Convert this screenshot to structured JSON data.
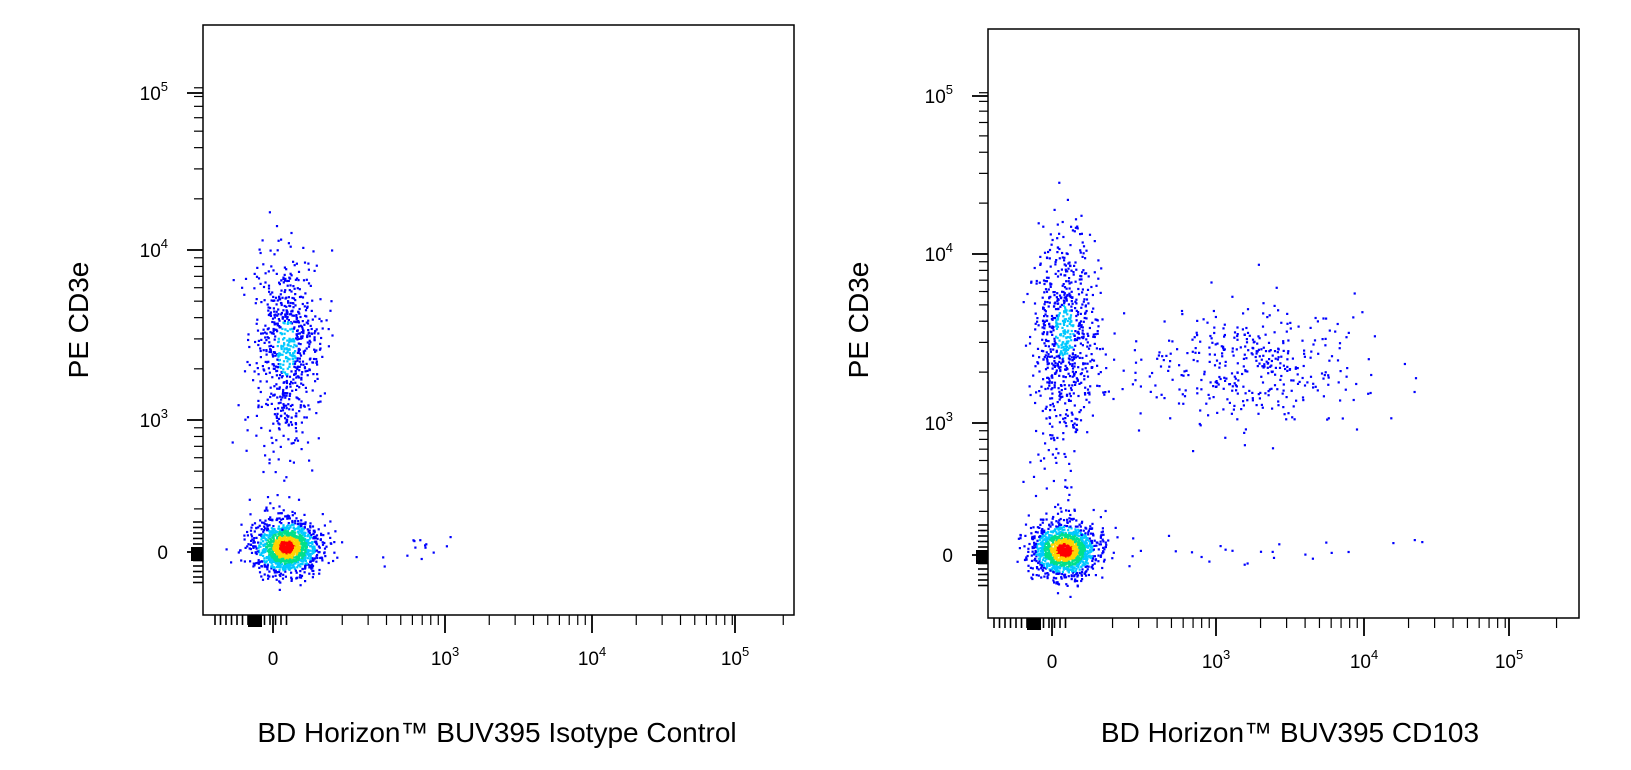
{
  "chart_data": [
    {
      "type": "scatter",
      "subtype": "flow-cytometry-pseudocolor-dot-plot",
      "xlabel": "BD Horizon™ BUV395  Isotype Control",
      "ylabel": "PE CD3e",
      "x_scale": "biexponential",
      "y_scale": "biexponential",
      "x_ticks": [
        {
          "base": "0",
          "exp": ""
        },
        {
          "base": "10",
          "exp": "3"
        },
        {
          "base": "10",
          "exp": "4"
        },
        {
          "base": "10",
          "exp": "5"
        }
      ],
      "y_ticks": [
        {
          "base": "0",
          "exp": ""
        },
        {
          "base": "10",
          "exp": "3"
        },
        {
          "base": "10",
          "exp": "4"
        },
        {
          "base": "10",
          "exp": "5"
        }
      ],
      "density_colors": [
        "#0000ff",
        "#00c8ff",
        "#00e08a",
        "#ffd400",
        "#ff0000"
      ],
      "populations": [
        {
          "x": 40,
          "y": 40,
          "density": "very high",
          "color_peak": "#ff0000"
        },
        {
          "x": 40,
          "y": 2700,
          "density": "medium",
          "color_peak": "#00c8ff"
        }
      ]
    },
    {
      "type": "scatter",
      "subtype": "flow-cytometry-pseudocolor-dot-plot",
      "xlabel": "BD Horizon™ BUV395  CD103",
      "ylabel": "PE CD3e",
      "x_scale": "biexponential",
      "y_scale": "biexponential",
      "x_ticks": [
        {
          "base": "0",
          "exp": ""
        },
        {
          "base": "10",
          "exp": "3"
        },
        {
          "base": "10",
          "exp": "4"
        },
        {
          "base": "10",
          "exp": "5"
        }
      ],
      "y_ticks": [
        {
          "base": "0",
          "exp": ""
        },
        {
          "base": "10",
          "exp": "3"
        },
        {
          "base": "10",
          "exp": "4"
        },
        {
          "base": "10",
          "exp": "5"
        }
      ],
      "density_colors": [
        "#0000ff",
        "#00c8ff",
        "#00e08a",
        "#ffd400",
        "#ff0000"
      ],
      "populations": [
        {
          "x": 40,
          "y": 40,
          "density": "very high",
          "color_peak": "#ff0000"
        },
        {
          "x": 40,
          "y": 3500,
          "density": "medium",
          "color_peak": "#00c8ff"
        },
        {
          "x": 1800,
          "y": 2200,
          "density": "low",
          "color_peak": "#0000ff"
        }
      ]
    }
  ]
}
